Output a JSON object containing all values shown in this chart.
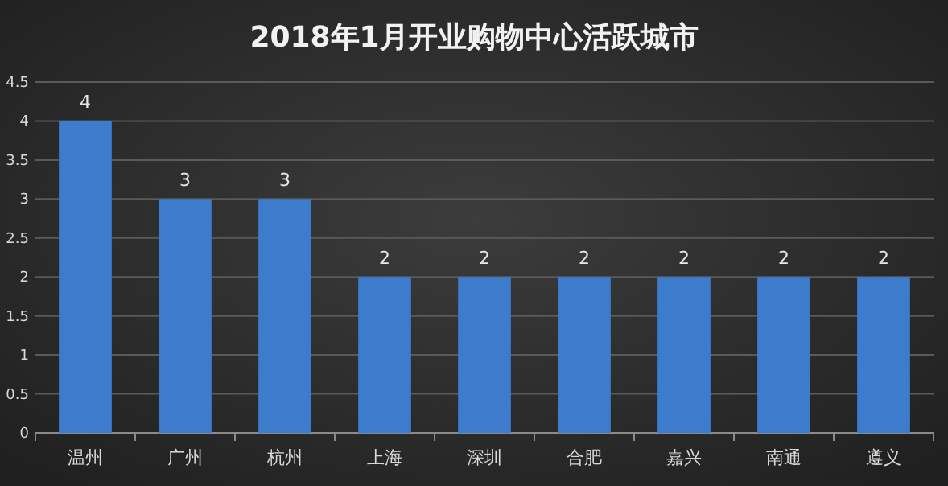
{
  "chart_data": {
    "type": "bar",
    "title": "2018年1月开业购物中心活跃城市",
    "categories": [
      "温州",
      "广州",
      "杭州",
      "上海",
      "深圳",
      "合肥",
      "嘉兴",
      "南通",
      "遵义"
    ],
    "values": [
      4,
      3,
      3,
      2,
      2,
      2,
      2,
      2,
      2
    ],
    "color": "#3d7ccc",
    "ylim": [
      0,
      4.5
    ],
    "yticks": [
      0,
      0.5,
      1,
      1.5,
      2,
      2.5,
      3,
      3.5,
      4,
      4.5
    ],
    "grid": "y",
    "data_labels": true
  }
}
